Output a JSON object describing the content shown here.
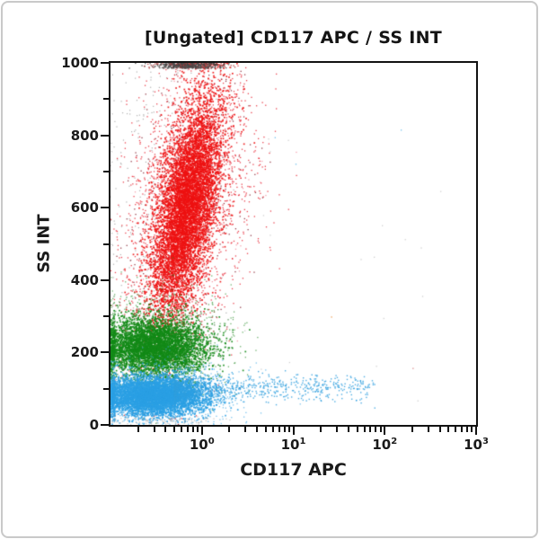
{
  "frame": {
    "border_color": "#c9c9c9",
    "background": "#ffffff"
  },
  "chart_data": {
    "type": "scatter",
    "subtype": "flow-cytometry-dot-plot",
    "title": "[Ungated] CD117 APC / SS INT",
    "xlabel": "CD117 APC",
    "ylabel": "SS INT",
    "x_scale": "log10",
    "x_range_log10": [
      -1,
      3
    ],
    "x_decade_exponents": [
      0,
      1,
      2,
      3
    ],
    "x_tick_base": "10",
    "y_scale": "linear",
    "y_range": [
      0,
      1000
    ],
    "y_major_ticks": [
      0,
      200,
      400,
      600,
      800,
      1000
    ],
    "y_minor_step": 100,
    "axis_color": "#121212",
    "text_color": "#1a1a1a",
    "grid": false,
    "legend": false,
    "populations": [
      {
        "name": "debris-gray-scatter",
        "color": "#8f8f8f",
        "n": 300,
        "alpha": 0.7,
        "size": 1.2,
        "ss": {
          "dist": "uniform",
          "min": 150,
          "max": 1000
        },
        "lx": {
          "dist": "gauss",
          "mean": -0.5,
          "sd": 0.35
        },
        "pile_left": true
      },
      {
        "name": "granulocytes-red-fringe",
        "color": "#e51423",
        "n": 3000,
        "alpha": 0.8,
        "size": 1.3,
        "ss": {
          "dist": "gauss",
          "mean": 610,
          "sd": 215
        },
        "lx": {
          "dist": "gauss",
          "mean": -0.15,
          "sd": 0.33
        },
        "slope": 0.0006,
        "alt": [
          {
            "color": "#7c1020",
            "p": 0.14
          },
          {
            "color": "#f2899b",
            "p": 0.06
          }
        ]
      },
      {
        "name": "granulocytes-red-core",
        "color": "#ee1111",
        "n": 6500,
        "alpha": 0.92,
        "size": 1.7,
        "ss": {
          "dist": "gauss",
          "mean": 600,
          "sd": 150
        },
        "lx": {
          "dist": "gauss",
          "mean": -0.17,
          "sd": 0.155
        },
        "slope": 0.0007,
        "pile_top": true
      },
      {
        "name": "saturated-top-pileup",
        "color": "#474747",
        "n": 550,
        "alpha": 0.85,
        "size": 1.4,
        "ss": {
          "dist": "uniform",
          "min": 985,
          "max": 1000
        },
        "lx": {
          "dist": "gauss",
          "mean": -0.14,
          "sd": 0.18
        },
        "alt": [
          {
            "color": "#b43a3a",
            "p": 0.3
          }
        ]
      },
      {
        "name": "monocytes-green-fringe",
        "color": "#2d8f2d",
        "n": 1400,
        "alpha": 0.7,
        "size": 1.3,
        "ss": {
          "dist": "gauss",
          "mean": 225,
          "sd": 68
        },
        "lx": {
          "dist": "gauss",
          "mean": -0.45,
          "sd": 0.36
        },
        "alt": [
          {
            "color": "#0e5f12",
            "p": 0.1
          }
        ],
        "pile_left": true
      },
      {
        "name": "monocytes-green-core",
        "color": "#128a17",
        "n": 4200,
        "alpha": 0.92,
        "size": 1.7,
        "ss": {
          "dist": "gauss",
          "mean": 215,
          "sd": 40
        },
        "lx": {
          "dist": "gauss",
          "mean": -0.52,
          "sd": 0.28
        },
        "pile_left": true
      },
      {
        "name": "lymphocytes-blue-fringe",
        "color": "#3fa8e6",
        "n": 1500,
        "alpha": 0.7,
        "size": 1.3,
        "ss": {
          "dist": "gauss",
          "mean": 88,
          "sd": 40
        },
        "lx": {
          "dist": "gauss",
          "mean": -0.45,
          "sd": 0.38
        },
        "pile_left": true
      },
      {
        "name": "lymphocytes-blue-core",
        "color": "#2aa0e4",
        "n": 4800,
        "alpha": 0.92,
        "size": 1.7,
        "ss": {
          "dist": "gauss",
          "mean": 80,
          "sd": 26
        },
        "lx": {
          "dist": "gauss",
          "mean": -0.52,
          "sd": 0.28
        },
        "pile_left": true
      },
      {
        "name": "cd117-positive-blue-tail",
        "color": "#2f9fde",
        "n": 850,
        "alpha": 0.85,
        "size": 1.4,
        "ss": {
          "dist": "gauss",
          "mean": 103,
          "sd": 19
        },
        "lx": {
          "dist": "tail",
          "start": -0.3,
          "span": 2.2,
          "pow": 2.0
        }
      },
      {
        "name": "bottom-debris",
        "color": "#9a9a9a",
        "n": 110,
        "alpha": 0.6,
        "size": 1.2,
        "ss": {
          "dist": "gauss",
          "mean": 12,
          "sd": 9
        },
        "lx": {
          "dist": "gauss",
          "mean": -0.5,
          "sd": 0.33
        },
        "pile_left": true
      },
      {
        "name": "sparse-right-specks",
        "color": "#c4c4c4",
        "n": 24,
        "alpha": 0.8,
        "size": 1.3,
        "ss": {
          "dist": "uniform",
          "min": 60,
          "max": 950
        },
        "lx": {
          "dist": "uniform",
          "min": 0.3,
          "max": 2.9
        },
        "alt": [
          {
            "color": "#e8821e",
            "p": 0.08
          },
          {
            "color": "#4fb0e8",
            "p": 0.15
          },
          {
            "color": "#d16a6a",
            "p": 0.1
          }
        ]
      }
    ]
  }
}
